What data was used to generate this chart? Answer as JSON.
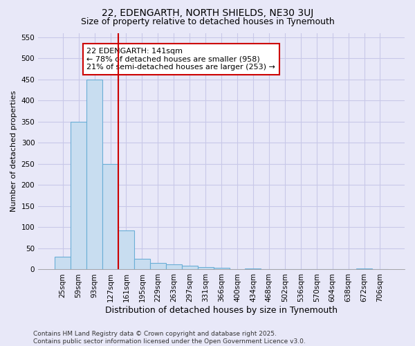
{
  "title": "22, EDENGARTH, NORTH SHIELDS, NE30 3UJ",
  "subtitle": "Size of property relative to detached houses in Tynemouth",
  "xlabel": "Distribution of detached houses by size in Tynemouth",
  "ylabel": "Number of detached properties",
  "categories": [
    "25sqm",
    "59sqm",
    "93sqm",
    "127sqm",
    "161sqm",
    "195sqm",
    "229sqm",
    "263sqm",
    "297sqm",
    "331sqm",
    "366sqm",
    "400sqm",
    "434sqm",
    "468sqm",
    "502sqm",
    "536sqm",
    "570sqm",
    "604sqm",
    "638sqm",
    "672sqm",
    "706sqm"
  ],
  "values": [
    30,
    350,
    450,
    250,
    93,
    25,
    15,
    12,
    9,
    5,
    4,
    0,
    2,
    0,
    0,
    0,
    0,
    0,
    0,
    3,
    0
  ],
  "bar_color": "#c8ddf0",
  "bar_edge_color": "#6aaed6",
  "grid_color": "#c8c8e8",
  "background_color": "#e8e8f8",
  "red_line_x": 3.5,
  "annotation_text": "22 EDENGARTH: 141sqm\n← 78% of detached houses are smaller (958)\n21% of semi-detached houses are larger (253) →",
  "annotation_box_color": "white",
  "annotation_box_edge": "#cc0000",
  "ylim": [
    0,
    560
  ],
  "yticks": [
    0,
    50,
    100,
    150,
    200,
    250,
    300,
    350,
    400,
    450,
    500,
    550
  ],
  "footer": "Contains HM Land Registry data © Crown copyright and database right 2025.\nContains public sector information licensed under the Open Government Licence v3.0.",
  "title_fontsize": 10,
  "subtitle_fontsize": 9,
  "xlabel_fontsize": 9,
  "ylabel_fontsize": 8,
  "tick_fontsize": 7.5,
  "footer_fontsize": 6.5,
  "annot_fontsize": 8
}
